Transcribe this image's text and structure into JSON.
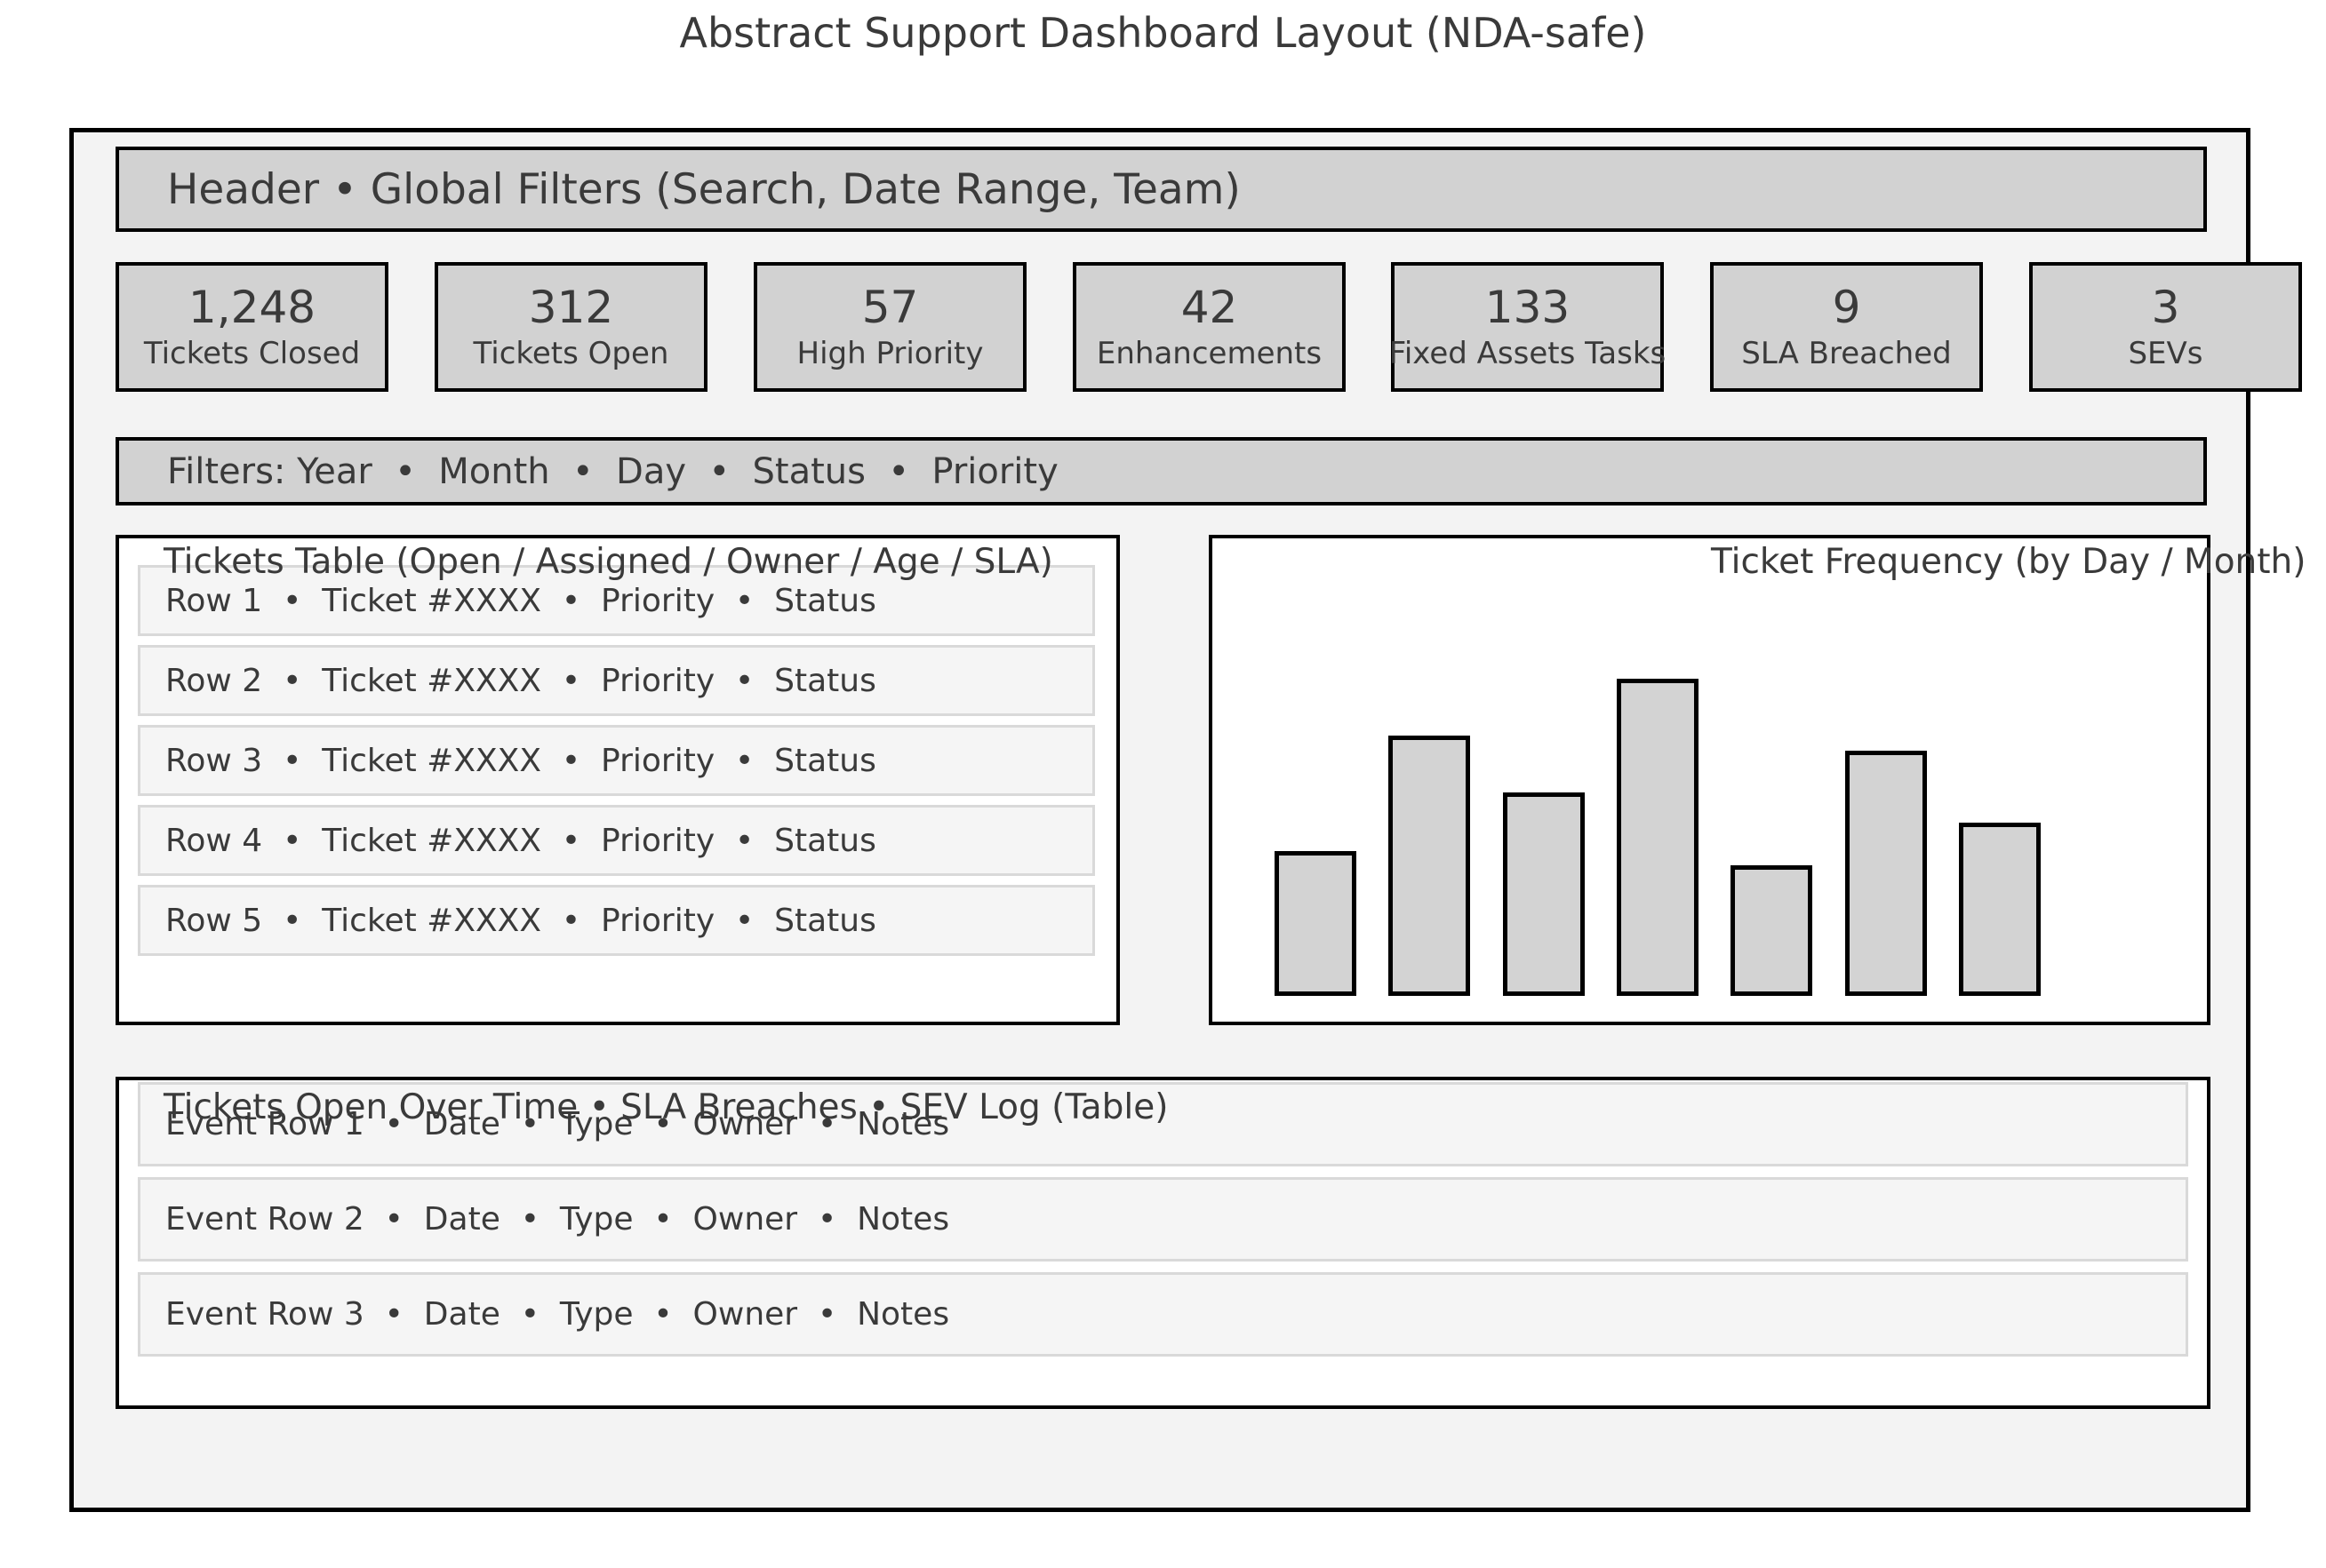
{
  "page": {
    "title": "Abstract Support Dashboard Layout (NDA-safe)"
  },
  "header": {
    "label": "Header • Global Filters (Search, Date Range, Team)"
  },
  "kpis": [
    {
      "value": "1,248",
      "label": "Tickets Closed"
    },
    {
      "value": "312",
      "label": "Tickets Open"
    },
    {
      "value": "57",
      "label": "High Priority"
    },
    {
      "value": "42",
      "label": "Enhancements"
    },
    {
      "value": "133",
      "label": "Fixed Assets Tasks"
    },
    {
      "value": "9",
      "label": "SLA Breached"
    },
    {
      "value": "3",
      "label": "SEVs"
    }
  ],
  "filters": {
    "label": "Filters: Year  •  Month  •  Day  •  Status  •  Priority"
  },
  "tickets_table": {
    "title": "Tickets Table (Open / Assigned / Owner / Age / SLA)",
    "rows": [
      "Row 1  •  Ticket #XXXX  •  Priority  •  Status",
      "Row 2  •  Ticket #XXXX  •  Priority  •  Status",
      "Row 3  •  Ticket #XXXX  •  Priority  •  Status",
      "Row 4  •  Ticket #XXXX  •  Priority  •  Status",
      "Row 5  •  Ticket #XXXX  •  Priority  •  Status"
    ]
  },
  "chart_data": {
    "type": "bar",
    "title": "Ticket Frequency (by Day / Month)",
    "categories": [
      "",
      "",
      "",
      "",
      "",
      "",
      ""
    ],
    "values": [
      163,
      293,
      229,
      357,
      147,
      276,
      195
    ],
    "ylim": [
      0,
      380
    ],
    "xlabel": "",
    "ylabel": "",
    "axes_visible": false,
    "grid": false,
    "legend": "none",
    "bar_fill": "#d3d3d3",
    "bar_border": "#000000"
  },
  "events_table": {
    "title": "Tickets Open Over Time • SLA Breaches • SEV Log (Table)",
    "rows": [
      "Event Row 1  •  Date  •  Type  •  Owner  •  Notes",
      "Event Row 2  •  Date  •  Type  •  Owner  •  Notes",
      "Event Row 3  •  Date  •  Type  •  Owner  •  Notes"
    ]
  },
  "colors": {
    "text": "#3a3a3a",
    "border": "#000000",
    "frame_fill": "#f3f3f3",
    "gray_fill": "#d2d2d2",
    "row_fill": "#f5f5f5",
    "row_border": "#d9d9d9",
    "bar_fill": "#d3d3d3"
  }
}
